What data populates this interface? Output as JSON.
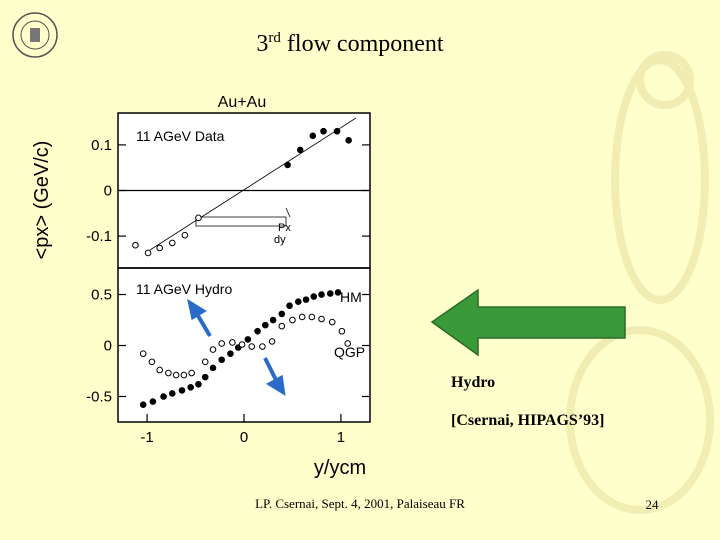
{
  "slide": {
    "title_parts": [
      "3",
      "rd",
      "flow component"
    ],
    "note": "Hydro",
    "reference": "[Csernai, HIPAGS’93]",
    "footer": "LP. Csernai, Sept. 4, 2001, Palaiseau FR",
    "page_number": "24"
  },
  "chart_data": [
    {
      "type": "scatter",
      "title": "Au+Au",
      "ylabel": "<px> (GeV/c)",
      "annotations": [
        "11 AGeV Data",
        "Px",
        "dy"
      ],
      "xlim": [
        -1.3,
        1.3
      ],
      "ylim": [
        -0.17,
        0.17
      ],
      "yticks": [
        0.1,
        0,
        -0.1
      ],
      "zeroline": true,
      "series": [
        {
          "color": "#000000",
          "marker": "filled",
          "x": [
            0.45,
            0.58,
            0.71,
            0.82,
            0.96,
            1.08
          ],
          "values": [
            0.056,
            0.089,
            0.12,
            0.13,
            0.13,
            0.11
          ]
        },
        {
          "color": "#000000",
          "marker": "open",
          "x": [
            -1.12,
            -0.99,
            -0.87,
            -0.74,
            -0.61,
            -0.47
          ],
          "values": [
            -0.12,
            -0.137,
            -0.126,
            -0.115,
            -0.098,
            -0.06
          ]
        }
      ]
    },
    {
      "type": "scatter",
      "xlabel": "y/ycm",
      "annotations": [
        "11 AGeV Hydro",
        "HM",
        "QGP"
      ],
      "xlim": [
        -1.3,
        1.3
      ],
      "ylim": [
        -0.75,
        0.76
      ],
      "xticks": [
        -1,
        0,
        1
      ],
      "yticks": [
        0.5,
        0,
        -0.5
      ],
      "zeroline": false,
      "series": [
        {
          "color": "#000000",
          "marker": "filled",
          "x": [
            -1.04,
            -0.94,
            -0.83,
            -0.74,
            -0.64,
            -0.55,
            -0.47,
            -0.4,
            -0.32,
            -0.23,
            -0.14,
            -0.06,
            0.04,
            0.14,
            0.22,
            0.3,
            0.39,
            0.47,
            0.56,
            0.64,
            0.72,
            0.8,
            0.89,
            0.97
          ],
          "values": [
            -0.58,
            -0.55,
            -0.5,
            -0.47,
            -0.44,
            -0.41,
            -0.38,
            -0.31,
            -0.22,
            -0.14,
            -0.08,
            -0.02,
            0.06,
            0.14,
            0.2,
            0.25,
            0.31,
            0.39,
            0.43,
            0.45,
            0.48,
            0.5,
            0.51,
            0.52
          ]
        },
        {
          "color": "#000000",
          "marker": "open",
          "x": [
            -1.04,
            -0.95,
            -0.87,
            -0.78,
            -0.7,
            -0.62,
            -0.54,
            -0.4,
            -0.32,
            -0.23,
            -0.12,
            -0.02,
            0.08,
            0.19,
            0.29,
            0.39,
            0.5,
            0.6,
            0.7,
            0.8,
            0.91,
            1.01,
            1.07
          ],
          "values": [
            -0.08,
            -0.16,
            -0.24,
            -0.27,
            -0.29,
            -0.29,
            -0.27,
            -0.16,
            -0.04,
            0.02,
            0.03,
            0.01,
            -0.01,
            -0.01,
            0.04,
            0.19,
            0.25,
            0.28,
            0.28,
            0.26,
            0.23,
            0.14,
            0.02
          ]
        }
      ]
    }
  ]
}
